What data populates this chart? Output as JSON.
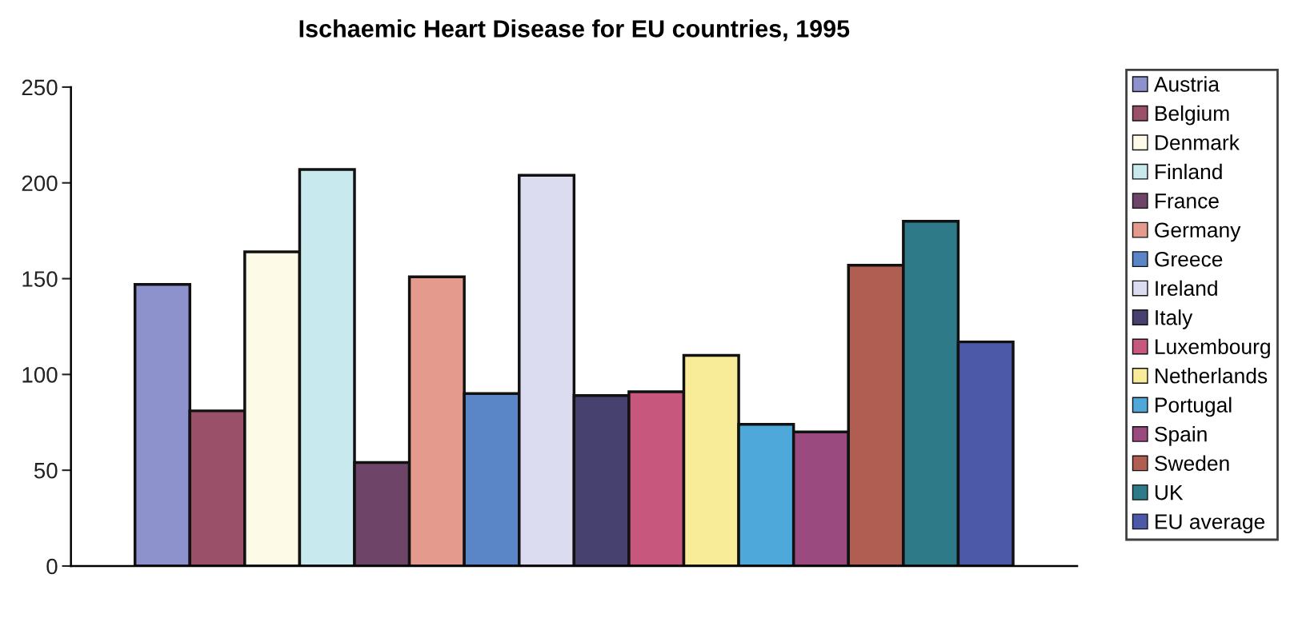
{
  "chart_data": {
    "type": "bar",
    "title": "Ischaemic Heart Disease for EU countries, 1995",
    "categories": [
      null
    ],
    "series": [
      {
        "name": "Austria",
        "color": "#8e92cc",
        "values": [
          147
        ]
      },
      {
        "name": "Belgium",
        "color": "#9a5068",
        "values": [
          81
        ]
      },
      {
        "name": "Denmark",
        "color": "#fdfbe8",
        "values": [
          164
        ]
      },
      {
        "name": "Finland",
        "color": "#c8e9ee",
        "values": [
          207
        ]
      },
      {
        "name": "France",
        "color": "#6e4468",
        "values": [
          54
        ]
      },
      {
        "name": "Germany",
        "color": "#e59a8e",
        "values": [
          151
        ]
      },
      {
        "name": "Greece",
        "color": "#5a86c8",
        "values": [
          90
        ]
      },
      {
        "name": "Ireland",
        "color": "#dcdcf0",
        "values": [
          204
        ]
      },
      {
        "name": "Italy",
        "color": "#46416e",
        "values": [
          89
        ]
      },
      {
        "name": "Luxembourg",
        "color": "#c8577e",
        "values": [
          91
        ]
      },
      {
        "name": "Netherlands",
        "color": "#f8ec98",
        "values": [
          110
        ]
      },
      {
        "name": "Portugal",
        "color": "#4ea8da",
        "values": [
          74
        ]
      },
      {
        "name": "Spain",
        "color": "#9a4a7e",
        "values": [
          70
        ]
      },
      {
        "name": "Sweden",
        "color": "#b05e52",
        "values": [
          157
        ]
      },
      {
        "name": "UK",
        "color": "#2e7a88",
        "values": [
          180
        ]
      },
      {
        "name": "EU average",
        "color": "#4c58a8",
        "values": [
          117
        ]
      }
    ],
    "ylim": [
      0,
      250
    ],
    "yticks": [
      0,
      50,
      100,
      150,
      200,
      250
    ],
    "grid": false,
    "legend": "right"
  }
}
